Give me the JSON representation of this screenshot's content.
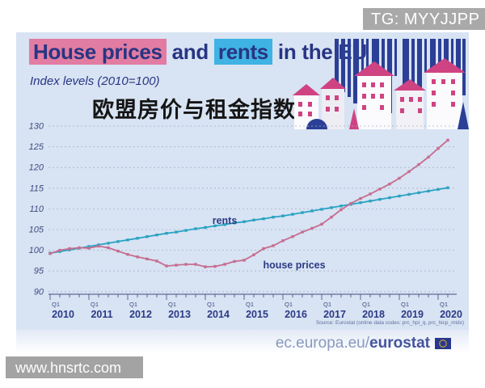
{
  "watermarks": {
    "top": "TG: MYYJJPP",
    "bottom": "www.hnsrtc.com"
  },
  "header": {
    "title_house": "House prices",
    "title_and": "and",
    "title_rents": "rents",
    "title_suffix": "in the EU",
    "subtitle": "Index levels (2010=100)",
    "overlay_cn": "欧盟房价与租金指数"
  },
  "source": "Source: Eurostat (online data codes: prc_hpi_q, prc_hicp_midx)",
  "footer": {
    "url_prefix": "ec.europa.eu/",
    "url_bold": "eurostat"
  },
  "colors": {
    "card_bg": "#d8e3f3",
    "title_navy": "#283583",
    "highlight_pink": "#e27ca2",
    "highlight_blue": "#3fb3e3",
    "grid": "#a7b2c6",
    "axis": "#3e4c80",
    "illustration_navy": "#2b3f96",
    "illustration_pink": "#cf4382"
  },
  "chart_data": {
    "type": "line",
    "title": "House prices and rents in the EU",
    "subtitle": "Index levels (2010=100)",
    "x_start": "2010-Q1",
    "x_end": "2020-Q2",
    "points_per_year": 4,
    "quarter_tick_label": "Q1",
    "years": [
      "2010",
      "2011",
      "2012",
      "2013",
      "2014",
      "2015",
      "2016",
      "2017",
      "2018",
      "2019",
      "2020"
    ],
    "ylim": [
      90,
      130
    ],
    "ytick_step": 5,
    "grid": "dashed-horizontal",
    "legend_position": "on-line-labels",
    "series": [
      {
        "name": "rents",
        "color": "#2aa3c2",
        "values": [
          99.3,
          99.7,
          100.1,
          100.5,
          100.9,
          101.3,
          101.7,
          102.1,
          102.5,
          102.9,
          103.3,
          103.7,
          104.1,
          104.4,
          104.8,
          105.2,
          105.5,
          105.9,
          106.2,
          106.6,
          106.9,
          107.3,
          107.6,
          108.0,
          108.3,
          108.7,
          109.1,
          109.5,
          109.9,
          110.3,
          110.7,
          111.1,
          111.5,
          111.9,
          112.3,
          112.7,
          113.1,
          113.5,
          113.9,
          114.3,
          114.7,
          115.1
        ]
      },
      {
        "name": "house prices",
        "color": "#c56e90",
        "values": [
          99.2,
          100.0,
          100.4,
          100.6,
          100.5,
          101.0,
          100.6,
          99.8,
          99.0,
          98.4,
          97.9,
          97.4,
          96.2,
          96.4,
          96.6,
          96.6,
          96.0,
          96.1,
          96.6,
          97.3,
          97.6,
          98.9,
          100.4,
          101.1,
          102.3,
          103.3,
          104.4,
          105.3,
          106.3,
          108.0,
          109.8,
          111.3,
          112.5,
          113.6,
          114.8,
          116.0,
          117.4,
          119.0,
          120.7,
          122.5,
          124.6,
          126.6
        ]
      }
    ]
  }
}
